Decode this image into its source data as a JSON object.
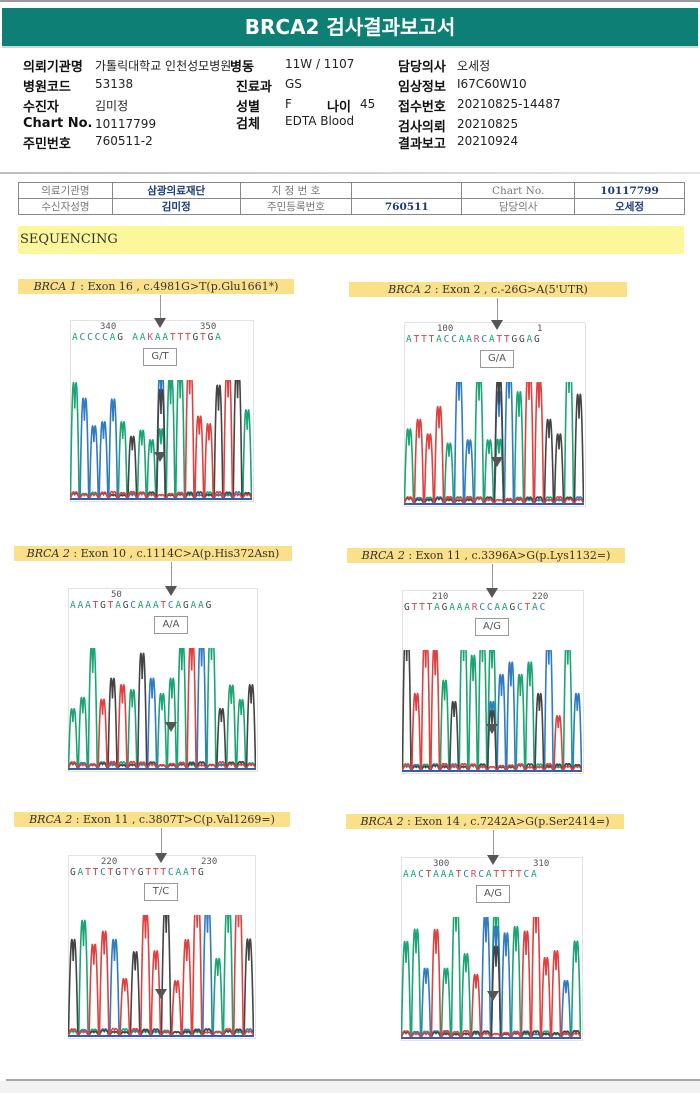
{
  "title": "BRCA2 검사결과보고서",
  "patient_info": {
    "institution_label": "의뢰기관명",
    "institution": "가톨릭대학교 인천성모병원",
    "ward_label": "병동",
    "ward": "11W / 1107",
    "doctor_label": "담당의사",
    "doctor": "오세정",
    "hospital_code_label": "병원코드",
    "hospital_code": "53138",
    "dept_label": "진료과",
    "dept": "GS",
    "clinical_label": "임상정보",
    "clinical": "I67C60W10",
    "patient_label": "수진자",
    "patient": "김미정",
    "sex_label": "성별",
    "sex": "F",
    "age_label": "나이",
    "age": "45",
    "receipt_label": "접수번호",
    "receipt": "20210825-14487",
    "chart_label": "Chart No.",
    "chart": "10117799",
    "specimen_label": "검체",
    "specimen": "EDTA Blood",
    "request_label": "검사의뢰",
    "request": "20210825",
    "id_label": "주민번호",
    "id": "760511-2",
    "report_label": "결과보고",
    "report": "20210924"
  },
  "scanned_table": {
    "row1": [
      "의료기관명",
      "삼광의료재단",
      "지 정 번 호",
      "",
      "Chart No.",
      "10117799"
    ],
    "row2": [
      "수신자성명",
      "김미정",
      "주민등록번호",
      "760511",
      "담당의사",
      "오세정"
    ]
  },
  "section_title": "SEQUENCING",
  "variants": [
    {
      "gene": "BRCA 1",
      "desc": " : Exon 16 , c.4981G>T(p.Glu1661*)",
      "pos_left": "340",
      "pos_right": "350",
      "genotype": "G/T",
      "sequence": "ACCCCAG AAKAATTTGTGA"
    },
    {
      "gene": "BRCA 2",
      "desc": " : Exon 2 , c.-26G>A(5'UTR)",
      "pos_left": "100",
      "pos_right": "1",
      "genotype": "G/A",
      "sequence": "ATTTACCAARCATTGGAG"
    },
    {
      "gene": "BRCA 2",
      "desc": " : Exon 10 , c.1114C>A(p.His372Asn)",
      "pos_left": "50",
      "pos_right": "",
      "genotype": "A/A",
      "sequence": "AAATGTAGCAAATCAGAAG"
    },
    {
      "gene": "BRCA 2",
      "desc": " : Exon 11 , c.3396A>G(p.Lys1132=)",
      "pos_left": "210",
      "pos_right": "220",
      "genotype": "A/G",
      "sequence": "GTTTAGAAARCCAAGCTAC"
    },
    {
      "gene": "BRCA 2",
      "desc": " : Exon 11 , c.3807T>C(p.Val1269=)",
      "pos_left": "220",
      "pos_right": "230",
      "genotype": "T/C",
      "sequence": "GATTCTGTYGTTTCAATG"
    },
    {
      "gene": "BRCA 2",
      "desc": " : Exon 14 , c.7242A>G(p.Ser2414=)",
      "pos_left": "300",
      "pos_right": "310",
      "genotype": "A/G",
      "sequence": "AACTAAATCRCATTTTCA"
    }
  ],
  "colors": {
    "banner": "#0e7f75",
    "caption_bg": "#fbe08a",
    "section_bg": "#fbf79a",
    "base_A": "#1aa673",
    "base_C": "#2f7bc4",
    "base_G": "#444444",
    "base_T": "#e0413f"
  }
}
